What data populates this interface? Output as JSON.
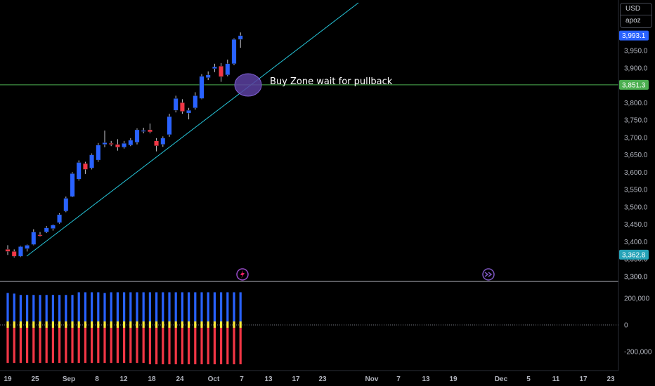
{
  "currency_box": {
    "currency": "USD",
    "unit": "apoz"
  },
  "colors": {
    "up": "#2962ff",
    "down": "#f23645",
    "trendline": "#26c6da",
    "hline": "#4caf50",
    "zone": "#5b3fa0",
    "vol_up": "#2962ff",
    "vol_down": "#f23645",
    "vol_mid": "#ffeb3b"
  },
  "chart_data": {
    "type": "candlestick",
    "y_axis": {
      "ticks": [
        3300,
        3350,
        3400,
        3450,
        3500,
        3550,
        3600,
        3650,
        3700,
        3750,
        3800,
        3850,
        3900,
        3950
      ],
      "range": [
        3300,
        4020
      ]
    },
    "x_axis": {
      "ticks": [
        "19",
        "25",
        "Sep",
        "8",
        "12",
        "18",
        "24",
        "Oct",
        "7",
        "13",
        "17",
        "23",
        "Nov",
        "7",
        "13",
        "19",
        "Dec",
        "5",
        "11",
        "17",
        "23"
      ]
    },
    "candles": [
      [
        3378,
        3390,
        3362,
        3372
      ],
      [
        3372,
        3378,
        3355,
        3358
      ],
      [
        3358,
        3388,
        3356,
        3386
      ],
      [
        3380,
        3392,
        3372,
        3390
      ],
      [
        3392,
        3436,
        3390,
        3428
      ],
      [
        3420,
        3428,
        3415,
        3418
      ],
      [
        3428,
        3445,
        3425,
        3440
      ],
      [
        3438,
        3450,
        3432,
        3448
      ],
      [
        3455,
        3482,
        3452,
        3478
      ],
      [
        3488,
        3530,
        3485,
        3525
      ],
      [
        3530,
        3600,
        3528,
        3596
      ],
      [
        3580,
        3634,
        3576,
        3628
      ],
      [
        3625,
        3630,
        3595,
        3608
      ],
      [
        3612,
        3654,
        3608,
        3650
      ],
      [
        3635,
        3684,
        3630,
        3678
      ],
      [
        3680,
        3720,
        3672,
        3685
      ],
      [
        3683,
        3690,
        3675,
        3682
      ],
      [
        3680,
        3695,
        3662,
        3672
      ],
      [
        3672,
        3690,
        3668,
        3683
      ],
      [
        3678,
        3698,
        3675,
        3692
      ],
      [
        3686,
        3726,
        3680,
        3722
      ],
      [
        3718,
        3728,
        3712,
        3720
      ],
      [
        3722,
        3740,
        3712,
        3716
      ],
      [
        3690,
        3698,
        3660,
        3676
      ],
      [
        3680,
        3703,
        3673,
        3698
      ],
      [
        3708,
        3768,
        3702,
        3760
      ],
      [
        3778,
        3820,
        3772,
        3812
      ],
      [
        3800,
        3810,
        3768,
        3775
      ],
      [
        3770,
        3785,
        3752,
        3778
      ],
      [
        3785,
        3830,
        3780,
        3820
      ],
      [
        3812,
        3882,
        3810,
        3876
      ],
      [
        3872,
        3890,
        3865,
        3880
      ],
      [
        3898,
        3912,
        3888,
        3903
      ],
      [
        3905,
        3914,
        3860,
        3875
      ],
      [
        3880,
        3924,
        3876,
        3912
      ],
      [
        3912,
        3985,
        3908,
        3982
      ],
      [
        3982,
        4002,
        3958,
        3993
      ]
    ],
    "volume": {
      "zero_label": "0",
      "ticks": [
        "200,000",
        "0",
        "-200,000"
      ],
      "up_values": [
        240000,
        235000,
        225000,
        225000,
        225000,
        225000,
        225000,
        225000,
        225000,
        225000,
        225000,
        245000,
        245000,
        245000,
        245000,
        240000,
        245000,
        245000,
        245000,
        245000,
        245000,
        245000,
        245000,
        245000,
        245000,
        245000,
        245000,
        245000,
        245000,
        245000,
        245000,
        245000,
        245000,
        245000,
        245000,
        245000,
        245000
      ],
      "down_values": [
        -285000,
        -285000,
        -285000,
        -285000,
        -285000,
        -285000,
        -285000,
        -285000,
        -285000,
        -285000,
        -285000,
        -285000,
        -285000,
        -285000,
        -285000,
        -285000,
        -285000,
        -285000,
        -285000,
        -285000,
        -285000,
        -285000,
        -295000,
        -295000,
        -295000,
        -295000,
        -295000,
        -295000,
        -295000,
        -295000,
        -295000,
        -295000,
        -295000,
        -295000,
        -295000,
        -295000,
        -295000
      ],
      "range": [
        -325000,
        240000
      ]
    },
    "price_badges": [
      {
        "label": "3,993.1",
        "value": 3993.1,
        "color": "#2962ff"
      },
      {
        "label": "3,851.3",
        "value": 3851.3,
        "color": "#4caf50"
      },
      {
        "label": "3,362.8",
        "value": 3362.8,
        "color": "#26a3b8"
      }
    ],
    "annotation": "Buy Zone wait for pullback",
    "horizontal_line": 3851.3,
    "trendline": [
      [
        3,
        3360
      ],
      [
        36,
        3830
      ]
    ]
  }
}
